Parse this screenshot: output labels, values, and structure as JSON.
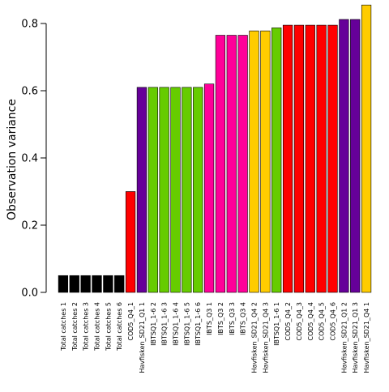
{
  "chart_data": {
    "type": "bar",
    "title": "",
    "xlabel": "",
    "ylabel": "Observation variance",
    "ylim": [
      0,
      0.86
    ],
    "yticks": [
      "0.0",
      "0.2",
      "0.4",
      "0.6",
      "0.8"
    ],
    "ytick_values": [
      0,
      0.2,
      0.4,
      0.6,
      0.8
    ],
    "grid": false,
    "legend": "none",
    "categories": [
      "Total catches 1",
      "Total catches 2",
      "Total catches 3",
      "Total catches 4",
      "Total catches 5",
      "Total catches 6",
      "COD5_Q4_1",
      "Havfisken_SD21_Q1 1",
      "IBTSQ1_1-6 2",
      "IBTSQ1_1-6 3",
      "IBTSQ1_1-6 4",
      "IBTSQ1_1-6 5",
      "IBTSQ1_1-6 6",
      "IBTS_Q3 1",
      "IBTS_Q3 2",
      "IBTS_Q3 3",
      "IBTS_Q3 4",
      "Havfisken_SD21_Q4 2",
      "Havfisken_SD21_Q4 3",
      "IBTSQ1_1-6 1",
      "COD5_Q4_2",
      "COD5_Q4_3",
      "COD5_Q4_4",
      "COD5_Q4_5",
      "COD5_Q4_6",
      "Havfisken_SD21_Q1 2",
      "Havfisken_SD21_Q1 3",
      "Havfisken_SD21_Q4 1"
    ],
    "values": [
      0.05,
      0.05,
      0.05,
      0.05,
      0.05,
      0.05,
      0.3,
      0.61,
      0.61,
      0.61,
      0.61,
      0.61,
      0.61,
      0.62,
      0.765,
      0.765,
      0.765,
      0.778,
      0.778,
      0.787,
      0.795,
      0.795,
      0.795,
      0.795,
      0.795,
      0.812,
      0.812,
      0.855
    ],
    "colors": [
      "#000000",
      "#000000",
      "#000000",
      "#000000",
      "#000000",
      "#000000",
      "#ff0000",
      "#660099",
      "#66cc00",
      "#66cc00",
      "#66cc00",
      "#66cc00",
      "#66cc00",
      "#ff0099",
      "#ff0099",
      "#ff0099",
      "#ff0099",
      "#ffcc00",
      "#ffcc00",
      "#66cc00",
      "#ff0000",
      "#ff0000",
      "#ff0000",
      "#ff0000",
      "#ff0000",
      "#660099",
      "#660099",
      "#ffcc00"
    ]
  }
}
